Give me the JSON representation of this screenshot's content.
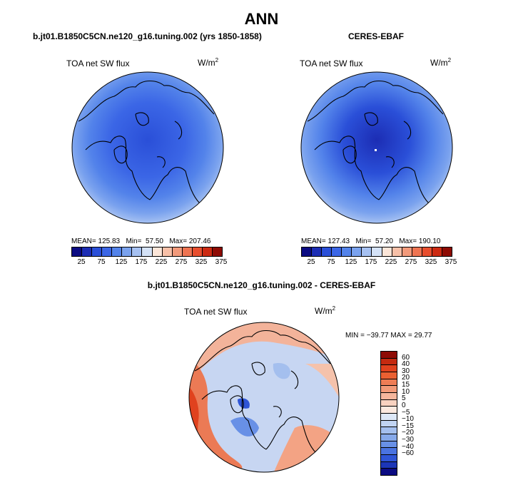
{
  "title": "ANN",
  "left_panel": {
    "heading": "b.jt01.B1850C5CN.ne120_g16.tuning.002 (yrs 1850-1858)",
    "variable": "TOA net SW flux",
    "units_base": "W/m",
    "units_exp": "2",
    "mean_label": "MEAN=",
    "mean": "125.83",
    "min_label": "Min=",
    "min": "57.50",
    "max_label": "Max=",
    "max": "207.46"
  },
  "right_panel": {
    "heading": "CERES-EBAF",
    "variable": "TOA net SW flux",
    "units_base": "W/m",
    "units_exp": "2",
    "mean_label": "MEAN=",
    "mean": "127.43",
    "min_label": "Min=",
    "min": "57.20",
    "max_label": "Max=",
    "max": "190.10"
  },
  "diff_panel": {
    "heading": "b.jt01.B1850C5CN.ne120_g16.tuning.002 - CERES-EBAF",
    "variable": "TOA net SW flux",
    "units_base": "W/m",
    "units_exp": "2",
    "minmax": "MIN = −39.77 MAX =  29.77"
  },
  "colorbar_top": {
    "colors": [
      "#0b0b82",
      "#1c2db4",
      "#2a4fd8",
      "#3b66e6",
      "#5383ea",
      "#7aa2ee",
      "#a6c1f2",
      "#d4e2f7",
      "#fbe5d8",
      "#f7c0a8",
      "#f29a7b",
      "#ee7452",
      "#e84e2e",
      "#cc2a12",
      "#8e0b04"
    ],
    "tick_labels": [
      "25",
      "75",
      "125",
      "175",
      "225",
      "275",
      "325",
      "375"
    ]
  },
  "colorbar_diff": {
    "colors": [
      "#8e0b04",
      "#c42a10",
      "#e0421e",
      "#ea6032",
      "#ee7d55",
      "#f29a78",
      "#f5b69c",
      "#f8d2c0",
      "#fbe9df",
      "#dde8f7",
      "#c1d4f2",
      "#a4bfee",
      "#86a9ea",
      "#6890e6",
      "#4a73e0",
      "#2f55d6",
      "#1c36b8",
      "#0b0b82"
    ],
    "tick_labels": [
      "60",
      "40",
      "30",
      "20",
      "15",
      "10",
      "5",
      "0",
      "−5",
      "−10",
      "−15",
      "−20",
      "−30",
      "−40",
      "−60"
    ]
  },
  "map_colors": {
    "ocean_ring": "#a6c1f2",
    "mid_ring": "#7aa2ee",
    "inner": "#3b66e6",
    "core": "#2a4fd8",
    "coast": "#000000",
    "diff_base": "#c7d6f2",
    "diff_warm": "#f3a384",
    "diff_warm2": "#eb7a55"
  }
}
